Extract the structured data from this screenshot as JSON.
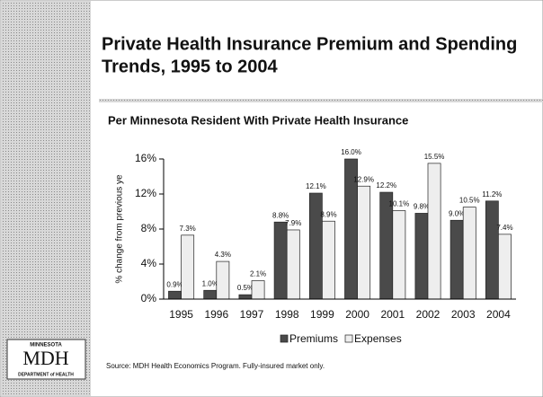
{
  "title_line1": "Private Health Insurance Premium and Spending",
  "title_line2": "Trends, 1995 to 2004",
  "logo": {
    "top": "MINNESOTA",
    "main": "MDH",
    "bottom": "DEPARTMENT of HEALTH"
  },
  "source": "Source: MDH Health Economics Program. Fully-insured market only.",
  "chart_data": {
    "type": "bar",
    "title": "Per Minnesota Resident With Private Health Insurance",
    "y_label": "% change from previous ye",
    "categories": [
      "1995",
      "1996",
      "1997",
      "1998",
      "1999",
      "2000",
      "2001",
      "2002",
      "2003",
      "2004"
    ],
    "series": [
      {
        "name": "Premiums",
        "color": "#4a4a4a",
        "values": [
          0.9,
          1.0,
          0.5,
          8.8,
          12.1,
          16.0,
          12.2,
          9.8,
          9.0,
          11.2
        ],
        "value_labels": [
          "0.9%",
          "1.0%",
          "0.5%",
          "8.8%",
          "12.1%",
          "16.0%",
          "12.2%",
          "9.8%",
          "9.0%",
          "11.2%"
        ]
      },
      {
        "name": "Expenses",
        "color": "#eeeeee",
        "values": [
          7.3,
          4.3,
          2.1,
          7.9,
          8.9,
          12.9,
          10.1,
          15.5,
          10.5,
          7.4
        ],
        "value_labels": [
          "7.3%",
          "4.3%",
          "2.1%",
          "7.9%",
          "8.9%",
          "12.9%",
          "10.1%",
          "15.5%",
          "10.5%",
          "7.4%"
        ]
      }
    ],
    "ylim": [
      0,
      16
    ],
    "yticks": [
      {
        "value": 0,
        "label": "0%"
      },
      {
        "value": 4,
        "label": "4%"
      },
      {
        "value": 8,
        "label": "8%"
      },
      {
        "value": 12,
        "label": "12%"
      },
      {
        "value": 16,
        "label": "16%"
      }
    ],
    "legend": "bottom"
  }
}
